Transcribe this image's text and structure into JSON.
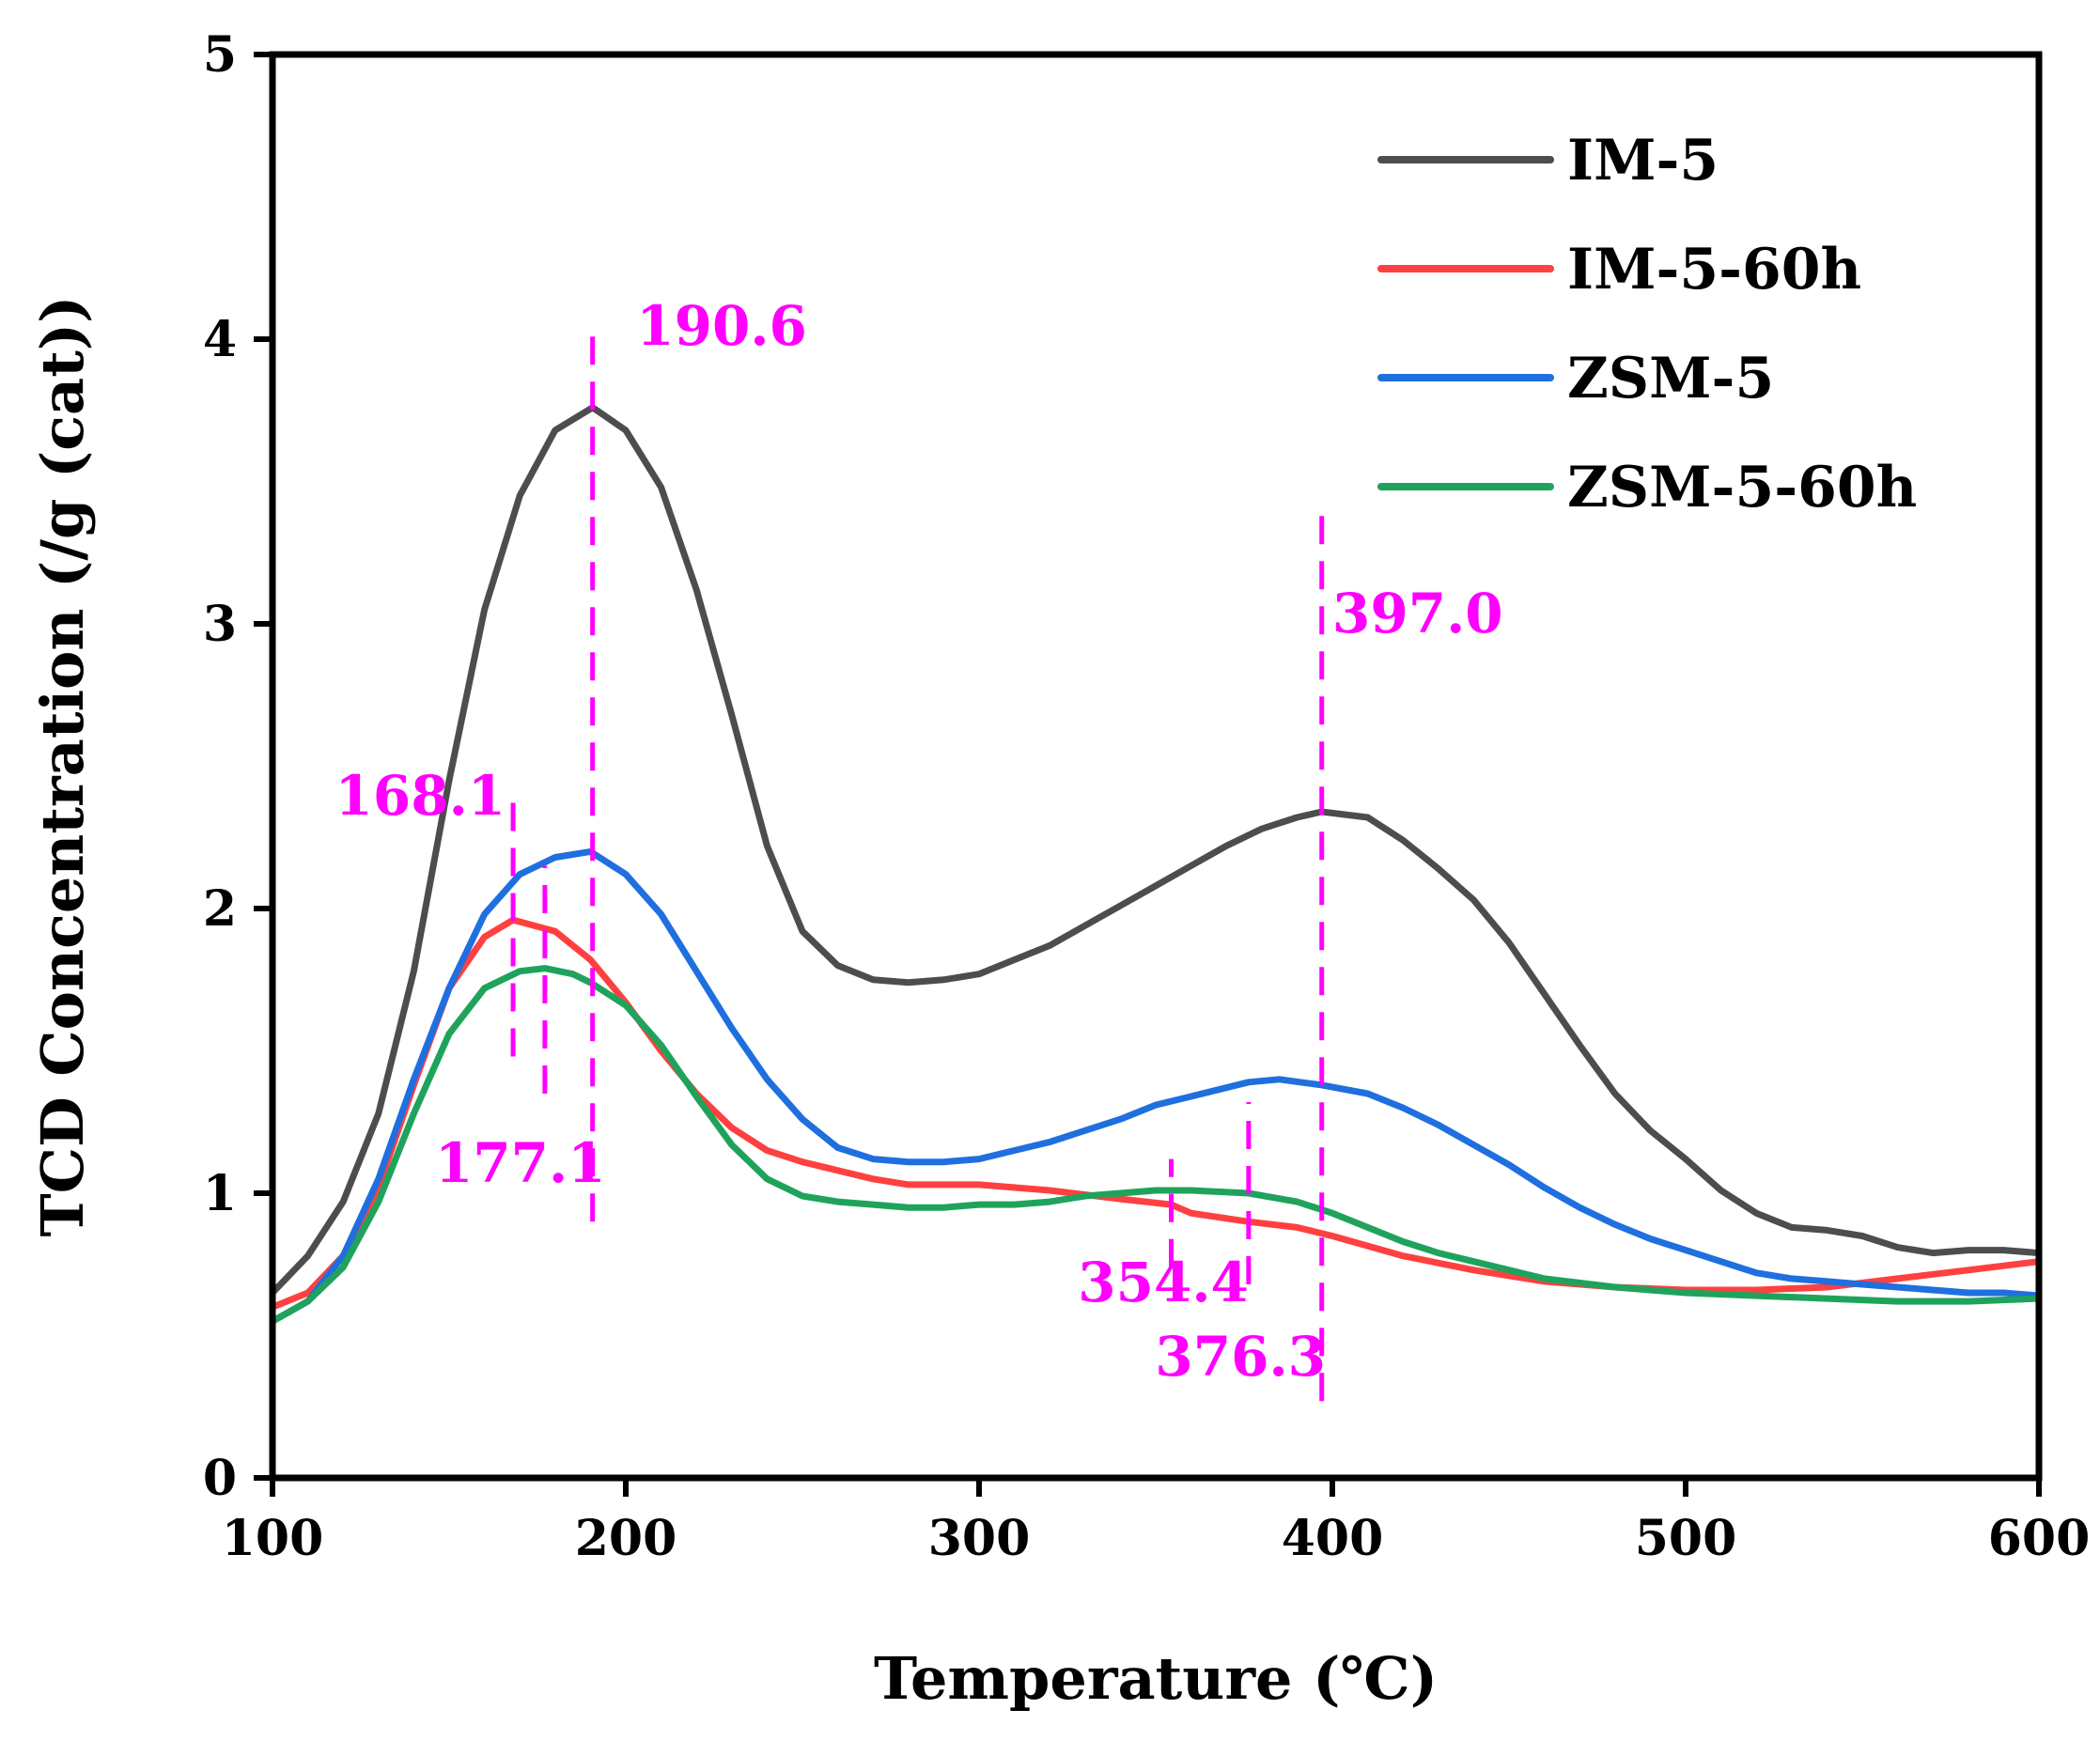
{
  "chart_data": {
    "type": "line",
    "xlabel": "Temperature (℃)",
    "ylabel": "TCD Concentration (/g (cat))",
    "xlim": [
      100,
      600
    ],
    "ylim": [
      0,
      5
    ],
    "xticks": [
      100,
      200,
      300,
      400,
      500,
      600
    ],
    "yticks": [
      0,
      1,
      2,
      3,
      4,
      5
    ],
    "grid": false,
    "legend_position": "top-right",
    "series": [
      {
        "name": "IM-5",
        "color": "#4d4d4d",
        "x": [
          100,
          110,
          120,
          130,
          140,
          150,
          160,
          170,
          180,
          190.6,
          200,
          210,
          220,
          230,
          240,
          250,
          260,
          270,
          280,
          290,
          300,
          310,
          320,
          330,
          340,
          350,
          360,
          370,
          380,
          390,
          397,
          410,
          420,
          430,
          440,
          450,
          460,
          470,
          480,
          490,
          500,
          510,
          520,
          530,
          540,
          550,
          560,
          570,
          580,
          590,
          600
        ],
        "y": [
          0.65,
          0.78,
          0.97,
          1.28,
          1.78,
          2.45,
          3.05,
          3.45,
          3.68,
          3.76,
          3.68,
          3.48,
          3.12,
          2.68,
          2.22,
          1.92,
          1.8,
          1.75,
          1.74,
          1.75,
          1.77,
          1.82,
          1.87,
          1.94,
          2.01,
          2.08,
          2.15,
          2.22,
          2.28,
          2.32,
          2.34,
          2.32,
          2.24,
          2.14,
          2.03,
          1.88,
          1.7,
          1.52,
          1.35,
          1.22,
          1.12,
          1.01,
          0.93,
          0.88,
          0.87,
          0.85,
          0.81,
          0.79,
          0.8,
          0.8,
          0.79
        ]
      },
      {
        "name": "IM-5-60h",
        "color": "#ff4040",
        "x": [
          100,
          110,
          120,
          130,
          140,
          150,
          160,
          168.1,
          180,
          190,
          200,
          210,
          220,
          230,
          240,
          250,
          260,
          270,
          280,
          290,
          300,
          320,
          340,
          354.4,
          360,
          376.3,
          390,
          400,
          420,
          440,
          460,
          480,
          500,
          520,
          540,
          560,
          580,
          600
        ],
        "y": [
          0.6,
          0.65,
          0.78,
          1.02,
          1.38,
          1.72,
          1.9,
          1.96,
          1.92,
          1.82,
          1.67,
          1.5,
          1.35,
          1.23,
          1.15,
          1.11,
          1.08,
          1.05,
          1.03,
          1.03,
          1.03,
          1.01,
          0.98,
          0.96,
          0.93,
          0.9,
          0.88,
          0.85,
          0.78,
          0.73,
          0.69,
          0.67,
          0.66,
          0.66,
          0.67,
          0.7,
          0.73,
          0.76
        ]
      },
      {
        "name": "ZSM-5",
        "color": "#1f6fdf",
        "x": [
          100,
          110,
          120,
          130,
          140,
          150,
          160,
          170,
          180,
          190,
          200,
          210,
          220,
          230,
          240,
          250,
          260,
          270,
          280,
          290,
          300,
          310,
          320,
          330,
          340,
          350,
          360,
          376.3,
          385,
          397,
          410,
          420,
          430,
          440,
          450,
          460,
          470,
          480,
          490,
          500,
          510,
          520,
          530,
          540,
          550,
          560,
          570,
          580,
          590,
          600
        ],
        "y": [
          0.55,
          0.62,
          0.78,
          1.05,
          1.4,
          1.72,
          1.98,
          2.12,
          2.18,
          2.2,
          2.12,
          1.98,
          1.78,
          1.58,
          1.4,
          1.26,
          1.16,
          1.12,
          1.11,
          1.11,
          1.12,
          1.15,
          1.18,
          1.22,
          1.26,
          1.31,
          1.34,
          1.39,
          1.4,
          1.38,
          1.35,
          1.3,
          1.24,
          1.17,
          1.1,
          1.02,
          0.95,
          0.89,
          0.84,
          0.8,
          0.76,
          0.72,
          0.7,
          0.69,
          0.68,
          0.67,
          0.66,
          0.65,
          0.65,
          0.64
        ]
      },
      {
        "name": "ZSM-5-60h",
        "color": "#1fa35c",
        "x": [
          100,
          110,
          120,
          130,
          140,
          150,
          160,
          170,
          177.1,
          185,
          190,
          200,
          210,
          220,
          230,
          240,
          250,
          260,
          270,
          280,
          290,
          300,
          310,
          320,
          330,
          340,
          350,
          354.4,
          360,
          376.3,
          390,
          400,
          410,
          420,
          430,
          440,
          460,
          480,
          500,
          520,
          540,
          560,
          580,
          600
        ],
        "y": [
          0.55,
          0.62,
          0.74,
          0.97,
          1.28,
          1.56,
          1.72,
          1.78,
          1.79,
          1.77,
          1.74,
          1.66,
          1.52,
          1.34,
          1.17,
          1.05,
          0.99,
          0.97,
          0.96,
          0.95,
          0.95,
          0.96,
          0.96,
          0.97,
          0.99,
          1.0,
          1.01,
          1.01,
          1.01,
          1.0,
          0.97,
          0.93,
          0.88,
          0.83,
          0.79,
          0.76,
          0.7,
          0.67,
          0.65,
          0.64,
          0.63,
          0.62,
          0.62,
          0.63
        ]
      }
    ],
    "annotations": [
      {
        "label": "190.6",
        "x": 190.6,
        "y_from": 0.9,
        "y_to": 4.03,
        "label_x": 203,
        "label_y": 3.98,
        "anchor": "start"
      },
      {
        "label": "397.0",
        "x": 397.0,
        "y_from": 0.27,
        "y_to": 3.42,
        "label_x": 400,
        "label_y": 2.97,
        "anchor": "start"
      },
      {
        "label": "168.1",
        "x": 168.1,
        "y_from": 1.48,
        "y_to": 2.38,
        "label_x": 166,
        "label_y": 2.33,
        "anchor": "end"
      },
      {
        "label": "177.1",
        "x": 177.1,
        "y_from": 1.35,
        "y_to": 2.15,
        "label_x": 146,
        "label_y": 1.04,
        "anchor": "start"
      },
      {
        "label": "354.4",
        "x": 354.4,
        "y_from": 0.74,
        "y_to": 1.12,
        "label_x": 328,
        "label_y": 0.62,
        "anchor": "start"
      },
      {
        "label": "376.3",
        "x": 376.3,
        "y_from": 0.68,
        "y_to": 1.32,
        "label_x": 374,
        "label_y": 0.36,
        "anchor": "middle"
      }
    ],
    "annotation_color": "#ff00ff"
  }
}
